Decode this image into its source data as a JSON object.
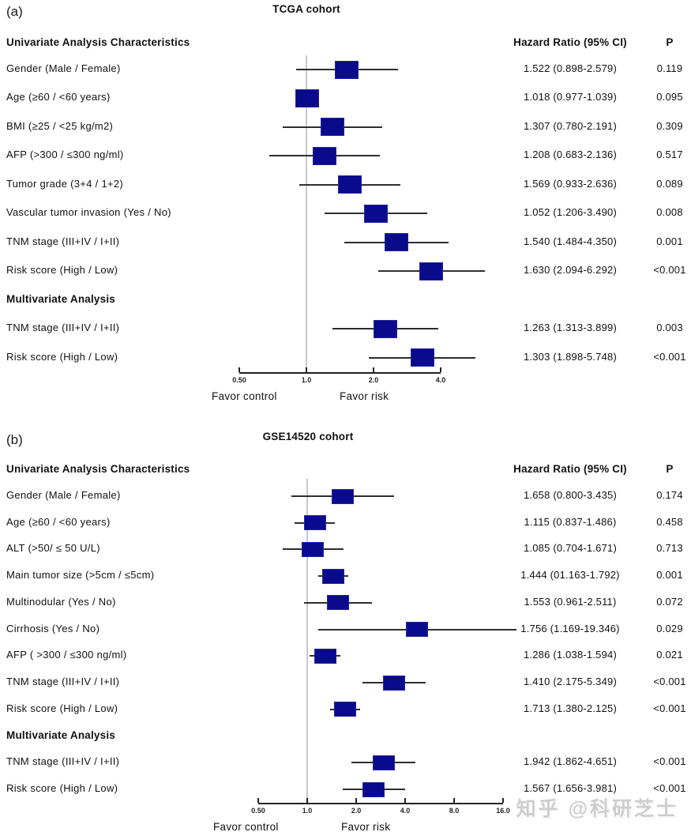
{
  "watermark": "知乎 @科研芝士",
  "chart_data": [
    {
      "type": "forest",
      "panel_label": "(a)",
      "title": "TCGA cohort",
      "columns": {
        "characteristics": "Univariate Analysis Characteristics",
        "hazard": "Hazard Ratio  (95% CI)",
        "p": "P"
      },
      "axis": {
        "scale": "log2",
        "ref_line": 1.0,
        "range": [
          0.5,
          4.0
        ],
        "ticks": [
          {
            "v": 0.5,
            "label": "0.50"
          },
          {
            "v": 1.0,
            "label": "1.0"
          },
          {
            "v": 2.0,
            "label": "2.0"
          },
          {
            "v": 4.0,
            "label": "4.0"
          }
        ],
        "favor_left": "Favor control",
        "favor_right": "Favor risk"
      },
      "rows": [
        {
          "type": "data",
          "label": "Gender  (Male / Female)",
          "hr_text": "1.522 (0.898-2.579)",
          "p_text": "0.119",
          "ci_low": 0.898,
          "ci_high": 2.579
        },
        {
          "type": "data",
          "label": "Age  (≥60 / <60 years)",
          "hr_text": "1.018 (0.977-1.039)",
          "p_text": "0.095",
          "ci_low": 0.977,
          "ci_high": 1.039
        },
        {
          "type": "data",
          "label": "BMI  (≥25 / <25 kg/m2)",
          "hr_text": "1.307 (0.780-2.191)",
          "p_text": "0.309",
          "ci_low": 0.78,
          "ci_high": 2.191
        },
        {
          "type": "data",
          "label": "AFP  (>300 / ≤300 ng/ml)",
          "hr_text": "1.208 (0.683-2.136)",
          "p_text": "0.517",
          "ci_low": 0.683,
          "ci_high": 2.136
        },
        {
          "type": "data",
          "label": "Tumor grade  (3+4 / 1+2)",
          "hr_text": "1.569 (0.933-2.636)",
          "p_text": "0.089",
          "ci_low": 0.933,
          "ci_high": 2.636
        },
        {
          "type": "data",
          "label": "Vascular tumor invasion  (Yes / No)",
          "hr_text": "1.052 (1.206-3.490)",
          "p_text": "0.008",
          "ci_low": 1.206,
          "ci_high": 3.49
        },
        {
          "type": "data",
          "label": "TNM stage  (III+IV / I+II)",
          "hr_text": "1.540 (1.484-4.350)",
          "p_text": "0.001",
          "ci_low": 1.484,
          "ci_high": 4.35
        },
        {
          "type": "data",
          "label": "Risk score  (High / Low)",
          "hr_text": "1.630 (2.094-6.292)",
          "p_text": "<0.001",
          "ci_low": 2.094,
          "ci_high": 6.292
        },
        {
          "type": "section",
          "label": "Multivariate Analysis"
        },
        {
          "type": "data",
          "label": "TNM stage  (III+IV / I+II)",
          "hr_text": "1.263 (1.313-3.899)",
          "p_text": "0.003",
          "ci_low": 1.313,
          "ci_high": 3.899
        },
        {
          "type": "data",
          "label": "Risk score  (High / Low)",
          "hr_text": "1.303 (1.898-5.748)",
          "p_text": "<0.001",
          "ci_low": 1.898,
          "ci_high": 5.748
        }
      ]
    },
    {
      "type": "forest",
      "panel_label": "(b)",
      "title": "GSE14520 cohort",
      "columns": {
        "characteristics": "Univariate Analysis Characteristics",
        "hazard": "Hazard Ratio  (95% CI)",
        "p": "P"
      },
      "axis": {
        "scale": "log2",
        "ref_line": 1.0,
        "range": [
          0.5,
          16.0
        ],
        "ticks": [
          {
            "v": 0.5,
            "label": "0.50"
          },
          {
            "v": 1.0,
            "label": "1.0"
          },
          {
            "v": 2.0,
            "label": "2.0"
          },
          {
            "v": 4.0,
            "label": "4.0"
          },
          {
            "v": 8.0,
            "label": "8.0"
          },
          {
            "v": 16.0,
            "label": "16.0"
          }
        ],
        "favor_left": "Favor control",
        "favor_right": "Favor risk"
      },
      "rows": [
        {
          "type": "data",
          "label": "Gender  (Male / Female)",
          "hr_text": "1.658 (0.800-3.435)",
          "p_text": "0.174",
          "ci_low": 0.8,
          "ci_high": 3.435
        },
        {
          "type": "data",
          "label": "Age  (≥60 / <60 years)",
          "hr_text": "1.115 (0.837-1.486)",
          "p_text": "0.458",
          "ci_low": 0.837,
          "ci_high": 1.486
        },
        {
          "type": "data",
          "label": "ALT (>50/ ≤ 50 U/L)",
          "hr_text": "1.085 (0.704-1.671)",
          "p_text": "0.713",
          "ci_low": 0.704,
          "ci_high": 1.671
        },
        {
          "type": "data",
          "label": "Main tumor size (>5cm / ≤5cm)",
          "hr_text": "1.444 (01.163-1.792)",
          "p_text": "0.001",
          "ci_low": 1.163,
          "ci_high": 1.792
        },
        {
          "type": "data",
          "label": "Multinodular (Yes / No)",
          "hr_text": "1.553 (0.961-2.511)",
          "p_text": "0.072",
          "ci_low": 0.961,
          "ci_high": 2.511
        },
        {
          "type": "data",
          "label": "Cirrhosis (Yes / No)",
          "hr_text": "1.756 (1.169-19.346)",
          "p_text": "0.029",
          "ci_low": 1.169,
          "ci_high": 19.346
        },
        {
          "type": "data",
          "label": "AFP  ( >300 / ≤300 ng/ml)",
          "hr_text": "1.286 (1.038-1.594)",
          "p_text": "0.021",
          "ci_low": 1.038,
          "ci_high": 1.594
        },
        {
          "type": "data",
          "label": "TNM stage  (III+IV / I+II)",
          "hr_text": "1.410 (2.175-5.349)",
          "p_text": "<0.001",
          "ci_low": 2.175,
          "ci_high": 5.349
        },
        {
          "type": "data",
          "label": "Risk score  (High / Low)",
          "hr_text": "1.713 (1.380-2.125)",
          "p_text": "<0.001",
          "ci_low": 1.38,
          "ci_high": 2.125
        },
        {
          "type": "section",
          "label": "Multivariate Analysis"
        },
        {
          "type": "data",
          "label": "TNM stage  (III+IV / I+II)",
          "hr_text": "1.942 (1.862-4.651)",
          "p_text": "<0.001",
          "ci_low": 1.862,
          "ci_high": 4.651
        },
        {
          "type": "data",
          "label": "Risk score  (High / Low)",
          "hr_text": "1.567 (1.656-3.981)",
          "p_text": "<0.001",
          "ci_low": 1.656,
          "ci_high": 3.981
        }
      ]
    }
  ]
}
